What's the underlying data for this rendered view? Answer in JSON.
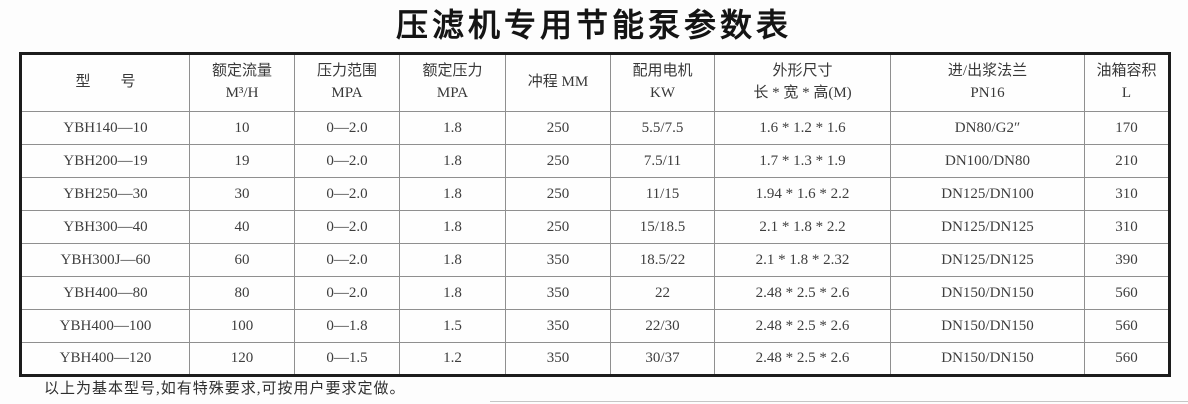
{
  "page": {
    "title": "压滤机专用节能泵参数表",
    "footnote": "以上为基本型号,如有特殊要求,可按用户要求定做。"
  },
  "table": {
    "columns": [
      {
        "id": "model",
        "lines": [
          "型　　号"
        ]
      },
      {
        "id": "rated-flow",
        "lines": [
          "额定流量",
          "M³/H"
        ]
      },
      {
        "id": "pressure-range",
        "lines": [
          "压力范围",
          "MPA"
        ]
      },
      {
        "id": "rated-pressure",
        "lines": [
          "额定压力",
          "MPA"
        ]
      },
      {
        "id": "stroke",
        "lines": [
          "冲程 MM"
        ]
      },
      {
        "id": "motor",
        "lines": [
          "配用电机",
          "KW"
        ]
      },
      {
        "id": "dimensions",
        "lines": [
          "外形尺寸",
          "长 * 宽 * 高(M)"
        ]
      },
      {
        "id": "flange",
        "lines": [
          "进/出浆法兰",
          "PN16"
        ]
      },
      {
        "id": "tank-volume",
        "lines": [
          "油箱容积",
          "L"
        ]
      }
    ],
    "rows": [
      [
        "YBH140—10",
        "10",
        "0—2.0",
        "1.8",
        "250",
        "5.5/7.5",
        "1.6 * 1.2 * 1.6",
        "DN80/G2″",
        "170"
      ],
      [
        "YBH200—19",
        "19",
        "0—2.0",
        "1.8",
        "250",
        "7.5/11",
        "1.7 * 1.3 * 1.9",
        "DN100/DN80",
        "210"
      ],
      [
        "YBH250—30",
        "30",
        "0—2.0",
        "1.8",
        "250",
        "11/15",
        "1.94 * 1.6 * 2.2",
        "DN125/DN100",
        "310"
      ],
      [
        "YBH300—40",
        "40",
        "0—2.0",
        "1.8",
        "250",
        "15/18.5",
        "2.1 * 1.8 * 2.2",
        "DN125/DN125",
        "310"
      ],
      [
        "YBH300J—60",
        "60",
        "0—2.0",
        "1.8",
        "350",
        "18.5/22",
        "2.1 * 1.8 * 2.32",
        "DN125/DN125",
        "390"
      ],
      [
        "YBH400—80",
        "80",
        "0—2.0",
        "1.8",
        "350",
        "22",
        "2.48 * 2.5 * 2.6",
        "DN150/DN150",
        "560"
      ],
      [
        "YBH400—100",
        "100",
        "0—1.8",
        "1.5",
        "350",
        "22/30",
        "2.48 * 2.5 * 2.6",
        "DN150/DN150",
        "560"
      ],
      [
        "YBH400—120",
        "120",
        "0—1.5",
        "1.2",
        "350",
        "30/37",
        "2.48 * 2.5 * 2.6",
        "DN150/DN150",
        "560"
      ]
    ],
    "colors": {
      "outer_border": "#1c1c1c",
      "inner_border": "#8f8f8f",
      "text": "#3d3d3d",
      "background": "#fdfdfd"
    }
  }
}
